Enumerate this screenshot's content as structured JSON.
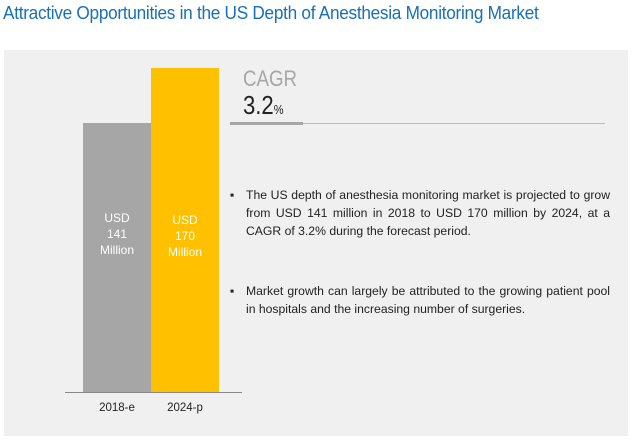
{
  "title": "Attractive Opportunities in the US Depth of Anesthesia Monitoring Market",
  "cagr": {
    "label": "CAGR",
    "value": "3.2",
    "unit": "%"
  },
  "bullets": [
    "The US depth of anesthesia monitoring market is projected to grow from USD 141 million in 2018 to USD 170 million by 2024, at a CAGR of 3.2% during the forecast period.",
    "Market growth can largely be attributed to the growing patient pool in hospitals and the increasing number of surgeries."
  ],
  "chart_data": {
    "type": "bar",
    "categories": [
      "2018-e",
      "2024-p"
    ],
    "values": [
      141,
      170
    ],
    "unit": "USD Million",
    "colors": [
      "#a6a6a6",
      "#ffc000"
    ],
    "labels": [
      [
        "USD",
        "141",
        "Million"
      ],
      [
        "USD",
        "170",
        "Million"
      ]
    ],
    "ylim": [
      0,
      170
    ]
  }
}
